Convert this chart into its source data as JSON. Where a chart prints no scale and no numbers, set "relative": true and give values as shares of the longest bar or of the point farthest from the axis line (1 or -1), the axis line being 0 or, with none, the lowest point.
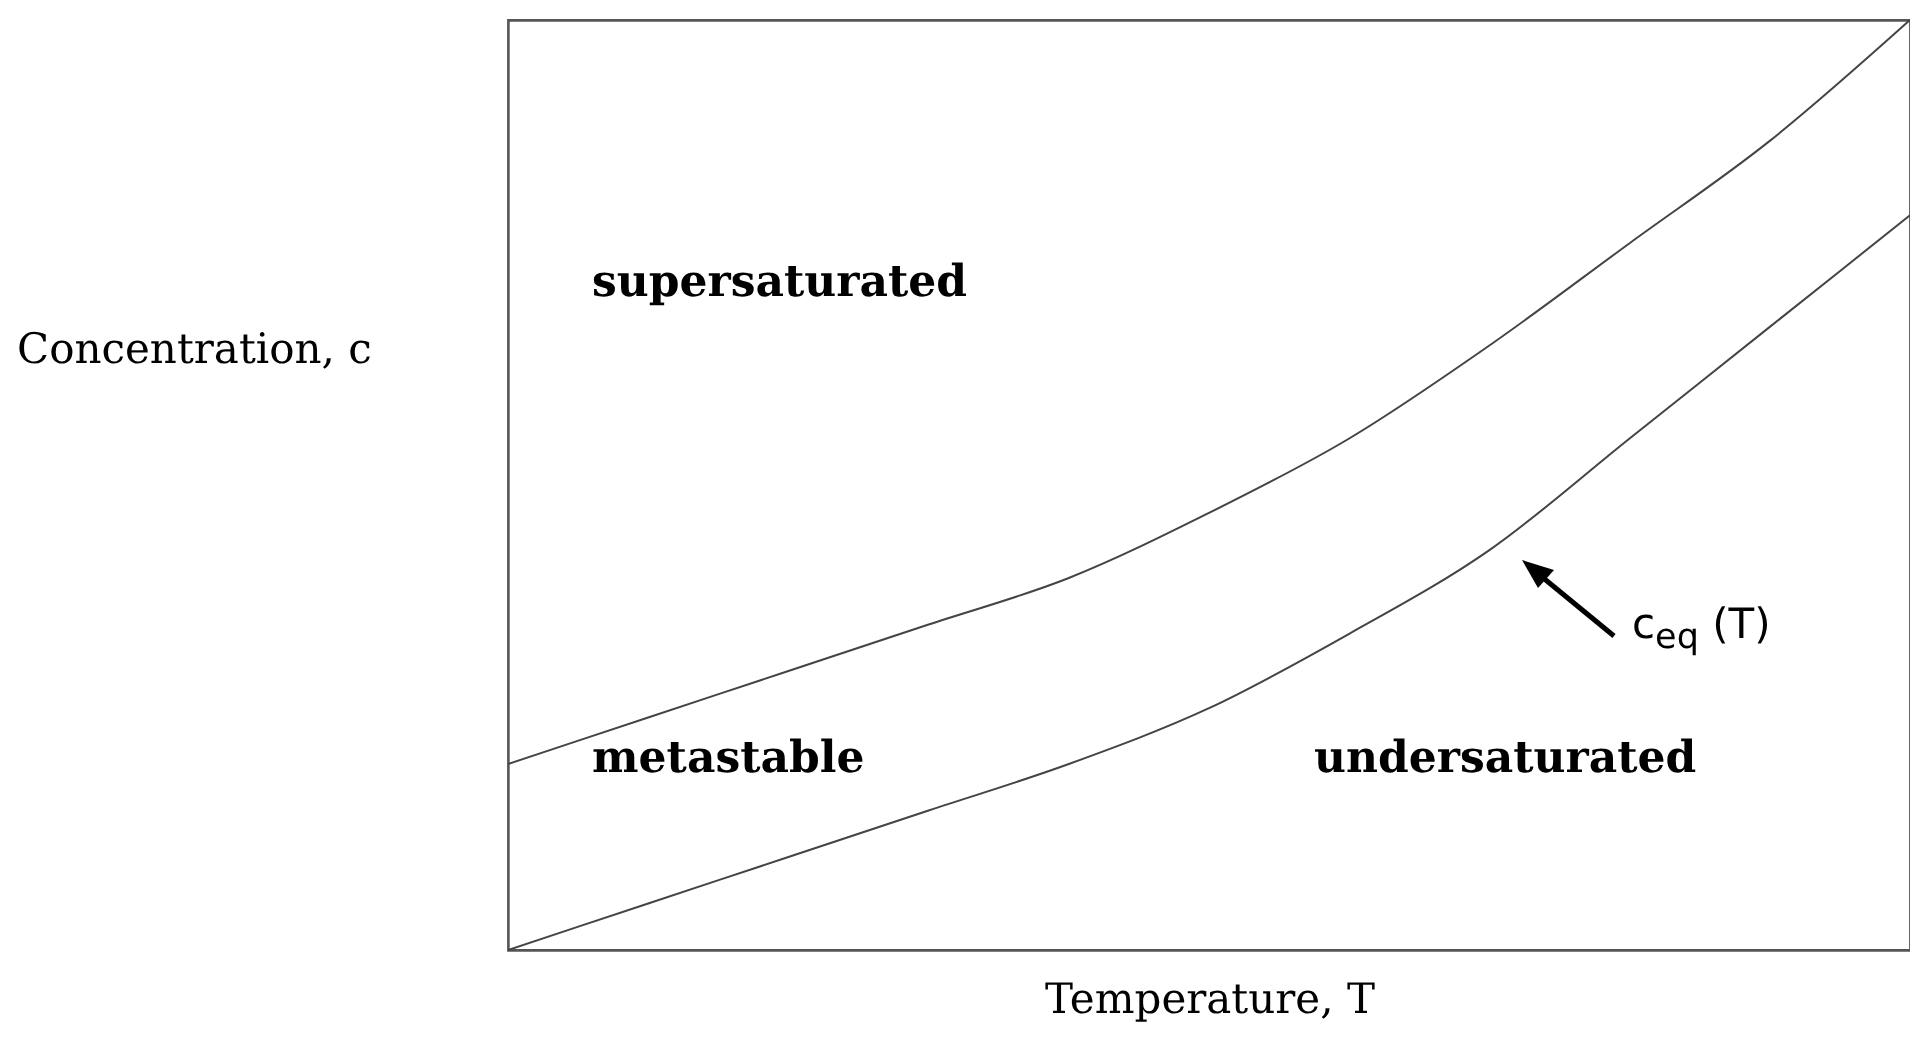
{
  "chart_data": {
    "type": "line",
    "relative": true,
    "xlabel": "Temperature, T",
    "ylabel": "Concentration, c",
    "categories": [
      null,
      null,
      null,
      null,
      null,
      null,
      null,
      null,
      null,
      null,
      null
    ],
    "series": [
      {
        "color": "#444444",
        "values": [
          0.2,
          0.25,
          0.3,
          0.35,
          0.4,
          0.47,
          0.55,
          0.65,
          0.76,
          0.87,
          1.0
        ]
      },
      {
        "color": "#444444",
        "values": [
          0.0,
          0.05,
          0.1,
          0.15,
          0.2,
          0.26,
          0.34,
          0.43,
          0.55,
          0.67,
          0.79
        ]
      }
    ],
    "annotations": [
      "supersaturated",
      "metastable",
      "undersaturated",
      "c$_{eq}$ (T)"
    ],
    "grid": false,
    "marker": "none",
    "line_style": "solid"
  }
}
